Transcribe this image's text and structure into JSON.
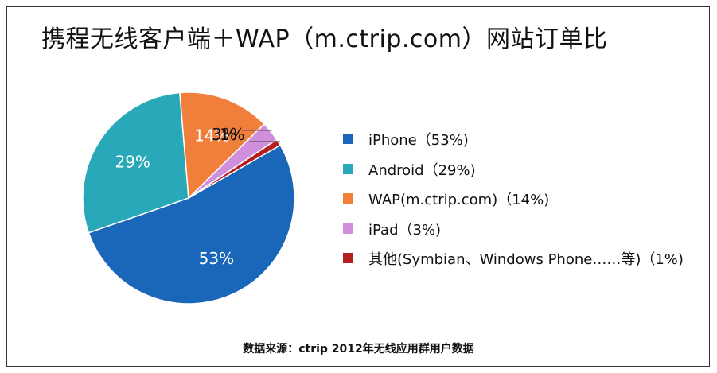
{
  "chart_data": {
    "type": "pie",
    "title": "携程无线客户端＋WAP（m.ctrip.com）网站订单比",
    "categories": [
      "iPhone",
      "Android",
      "WAP(m.ctrip.com)",
      "iPad",
      "其他(Symbian、Windows Phone……等)"
    ],
    "values": [
      53,
      29,
      14,
      3,
      1
    ],
    "slice_labels": [
      "53%",
      "29%",
      "14%",
      "3%",
      "1%"
    ],
    "legend": [
      "iPhone（53%)",
      "Android（29%)",
      "WAP(m.ctrip.com)（14%)",
      "iPad（3%)",
      "其他(Symbian、Windows Phone……等)（1%)"
    ],
    "colors": [
      "#1a66b8",
      "#28a8b8",
      "#f07f3c",
      "#cf8fdc",
      "#b41e1e"
    ],
    "legend_position": "right",
    "source": "数据来源：ctrip 2012年无线应用群用户数据"
  }
}
